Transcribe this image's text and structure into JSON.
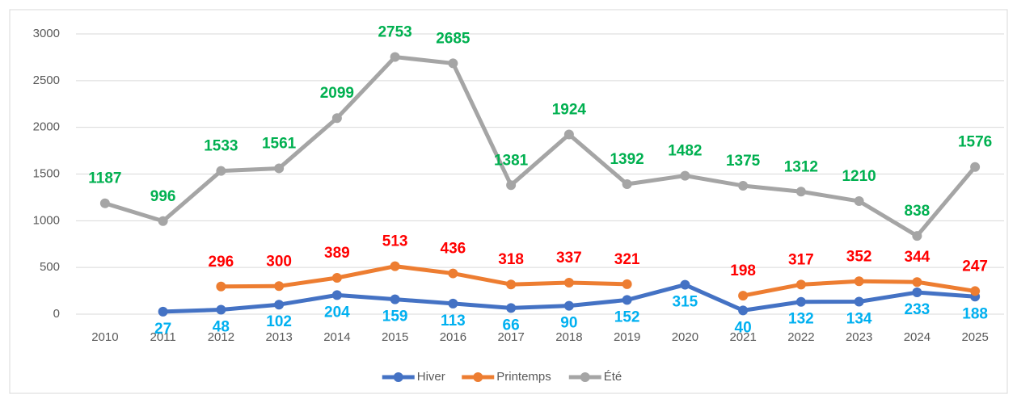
{
  "chart_data": {
    "type": "line",
    "categories": [
      "2010",
      "2011",
      "2012",
      "2013",
      "2014",
      "2015",
      "2016",
      "2017",
      "2018",
      "2019",
      "2020",
      "2021",
      "2022",
      "2023",
      "2024",
      "2025"
    ],
    "series": [
      {
        "name": "Hiver",
        "color": "#4472c4",
        "label_color": "#00b0f0",
        "values": [
          null,
          27,
          48,
          102,
          204,
          159,
          113,
          66,
          90,
          152,
          315,
          40,
          132,
          134,
          233,
          188
        ]
      },
      {
        "name": "Printemps",
        "color": "#ed7d31",
        "label_color": "#ff0000",
        "values": [
          null,
          null,
          296,
          300,
          389,
          513,
          436,
          318,
          337,
          321,
          null,
          198,
          317,
          352,
          344,
          247
        ]
      },
      {
        "name": "Été",
        "color": "#a5a5a5",
        "label_color": "#00b050",
        "values": [
          1187,
          996,
          1533,
          1561,
          2099,
          2753,
          2685,
          1381,
          1924,
          1392,
          1482,
          1375,
          1312,
          1210,
          838,
          1576
        ]
      }
    ],
    "ylim": [
      0,
      3000
    ],
    "yticks": [
      0,
      500,
      1000,
      1500,
      2000,
      2500,
      3000
    ],
    "grid": true,
    "legend": "bottom"
  }
}
